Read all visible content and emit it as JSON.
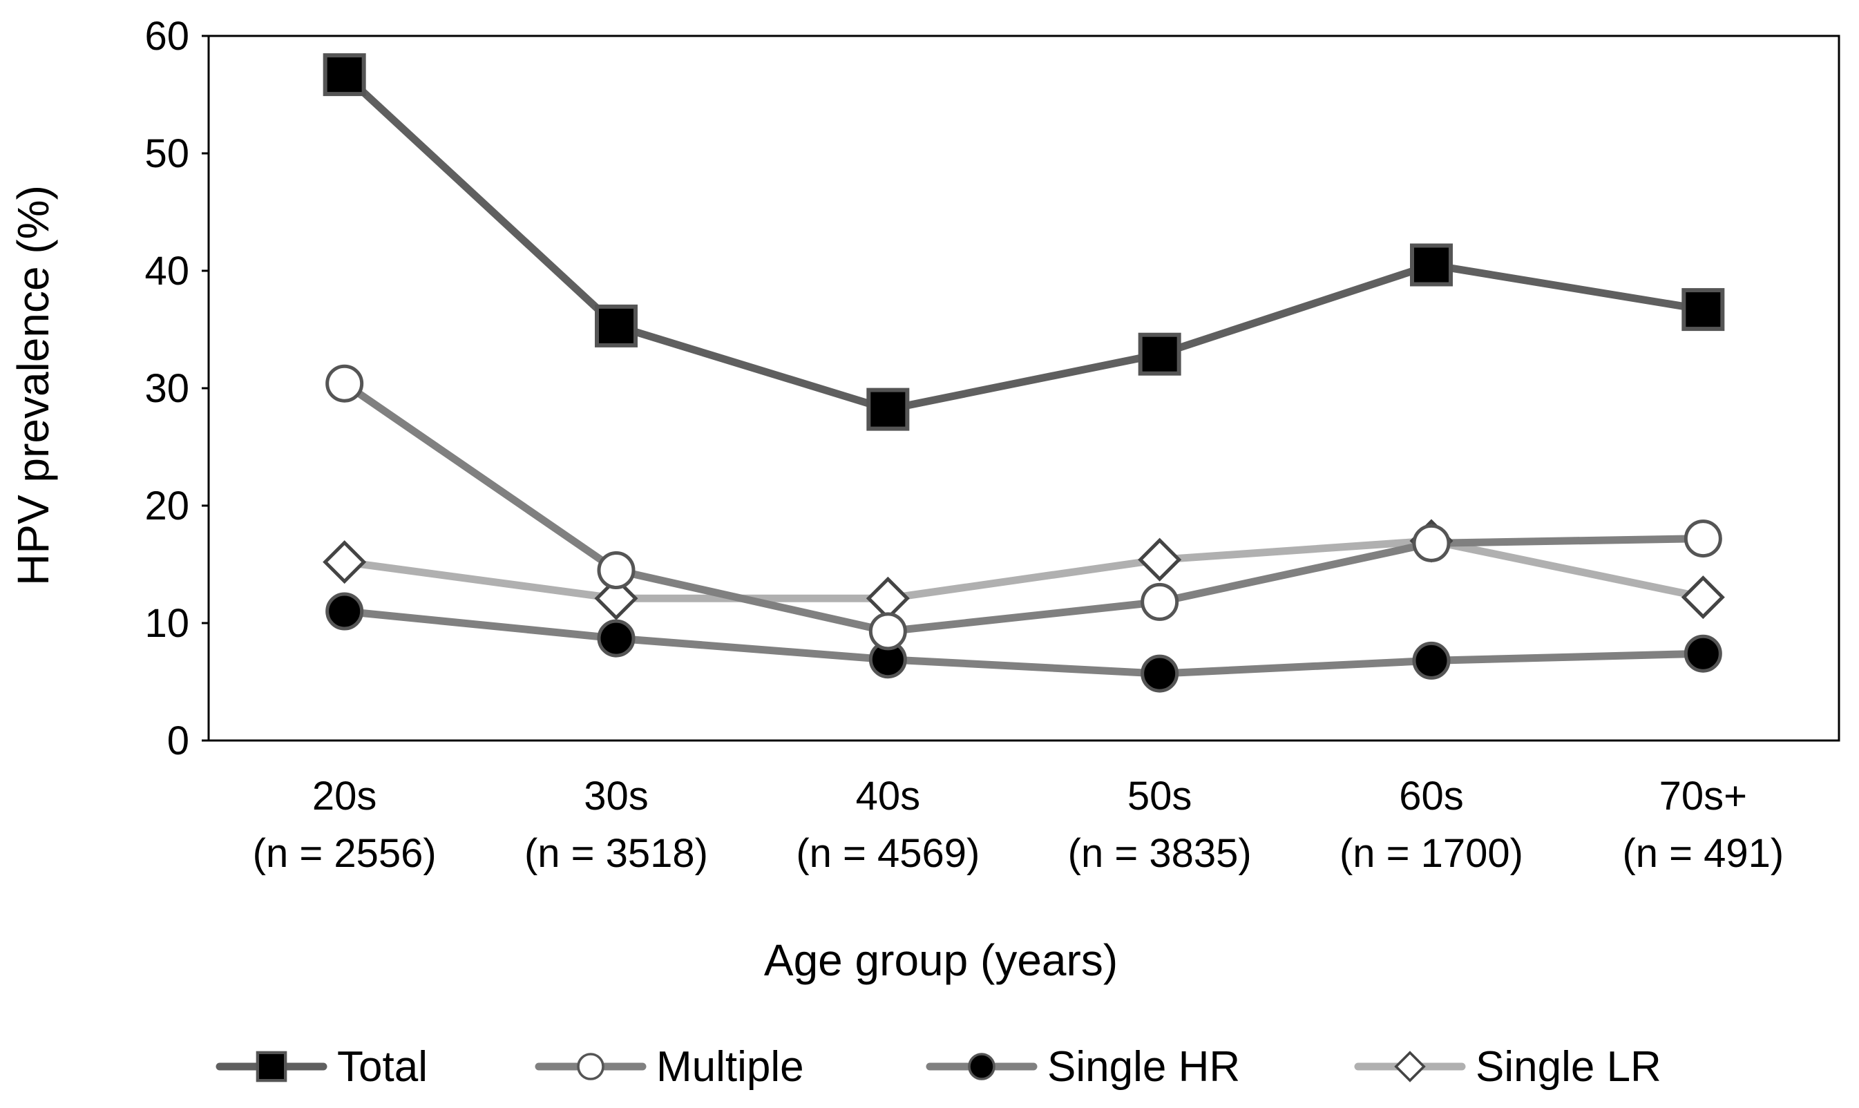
{
  "chart_data": {
    "type": "line",
    "title": "",
    "xlabel": "Age group (years)",
    "ylabel": "HPV prevalence (%)",
    "ylim": [
      0,
      60
    ],
    "yticks": [
      "0",
      "10",
      "20",
      "30",
      "40",
      "50",
      "60"
    ],
    "grid": false,
    "legend_position": "bottom",
    "categories": [
      {
        "group": "20s",
        "n": "(n = 2556)"
      },
      {
        "group": "30s",
        "n": "(n = 3518)"
      },
      {
        "group": "40s",
        "n": "(n = 4569)"
      },
      {
        "group": "50s",
        "n": "(n = 3835)"
      },
      {
        "group": "60s",
        "n": "(n = 1700)"
      },
      {
        "group": "70s+",
        "n": "(n = 491)"
      }
    ],
    "series": [
      {
        "name": "Total",
        "marker": "square",
        "line_color": "#5f5f5f",
        "marker_fill": "#000000",
        "values": [
          56.7,
          35.3,
          28.2,
          32.9,
          40.5,
          36.7
        ]
      },
      {
        "name": "Multiple",
        "marker": "circle",
        "line_color": "#808080",
        "marker_fill": "#ffffff",
        "values": [
          30.4,
          14.5,
          9.3,
          11.8,
          16.8,
          17.2
        ]
      },
      {
        "name": "Single HR",
        "marker": "circle",
        "line_color": "#808080",
        "marker_fill": "#000000",
        "values": [
          11.0,
          8.7,
          6.9,
          5.7,
          6.8,
          7.4
        ]
      },
      {
        "name": "Single LR",
        "marker": "diamond",
        "line_color": "#b0b0b0",
        "marker_fill": "#ffffff",
        "values": [
          15.2,
          12.1,
          12.1,
          15.4,
          17.0,
          12.2
        ]
      }
    ]
  }
}
